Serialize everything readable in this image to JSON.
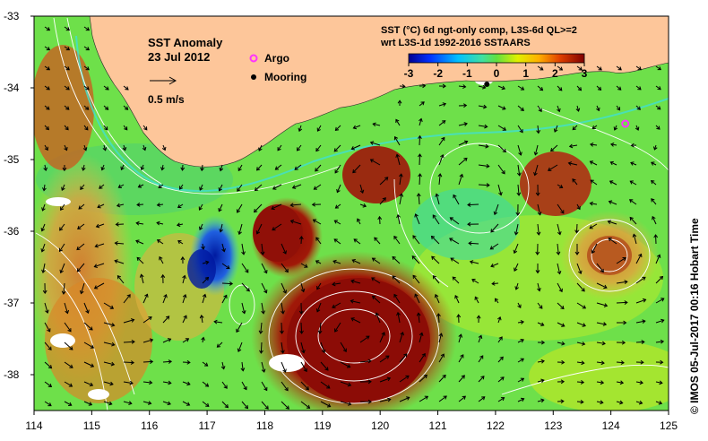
{
  "title": "SST Anomaly",
  "date": "23 Jul 2012",
  "scale_label": "0.5 m/s",
  "legend": {
    "argo_label": "Argo",
    "mooring_label": "Mooring",
    "argo_color": "#ff33ff",
    "mooring_color": "#000000"
  },
  "colorbar": {
    "title_line1": "SST (°C) 6d ngt-only comp, L3S-6d QL>=2",
    "title_line2": "wrt L3S-1d 1992-2016 SSTAARS",
    "ticks": [
      "-3",
      "-2",
      "-1",
      "0",
      "1",
      "2",
      "3"
    ],
    "min": -3,
    "max": 3
  },
  "credit": "© IMOS 05-Jul-2017 00:16 Hobart Time",
  "colors": {
    "land": "#fdc69a",
    "ocean_base": "#6ee04a",
    "warm_anomaly": "#9c1a0a",
    "cool_anomaly": "#2040c0",
    "contour": "#ffffff",
    "current_jet": "#40e0d0"
  },
  "axes": {
    "x_ticks": [
      "114",
      "115",
      "116",
      "117",
      "118",
      "119",
      "120",
      "121",
      "122",
      "123",
      "124",
      "125"
    ],
    "y_ticks": [
      "-33",
      "-34",
      "-35",
      "-36",
      "-37",
      "-38"
    ],
    "x_range": [
      114,
      125
    ],
    "y_range": [
      -38.5,
      -33
    ]
  },
  "markers": {
    "argo": {
      "lon": 124.25,
      "lat": -34.5
    },
    "mooring": {
      "lon": 121.85,
      "lat": -33.95
    }
  }
}
